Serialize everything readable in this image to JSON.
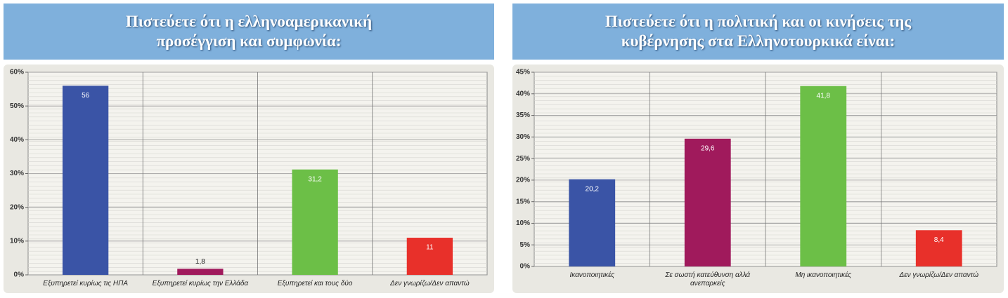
{
  "chart_data": [
    {
      "type": "bar",
      "title": "Πιστεύετε ότι η ελληνοαμερικανική προσέγγιση και συμφωνία:",
      "categories": [
        "Εξυπηρετεί κυρίως τις ΗΠΑ",
        "Εξυπηρετεί κυρίως την Ελλάδα",
        "Εξυπηρετεί και τους δύο",
        "Δεν γνωρίζω/Δεν απαντώ"
      ],
      "values": [
        56,
        1.8,
        31.2,
        11
      ],
      "value_labels": [
        "56",
        "1,8",
        "31,2",
        "11"
      ],
      "colors": [
        "#3a54a6",
        "#a01a5c",
        "#6cbf47",
        "#e8302a"
      ],
      "ylim": [
        0,
        60
      ],
      "yticks": [
        {
          "value": 0,
          "label": "0%"
        },
        {
          "value": 10,
          "label": "10%"
        },
        {
          "value": 20,
          "label": "20%"
        },
        {
          "value": 30,
          "label": "30%"
        },
        {
          "value": 40,
          "label": "40%"
        },
        {
          "value": 50,
          "label": "50%"
        },
        {
          "value": 60,
          "label": "60%"
        }
      ],
      "grid": true
    },
    {
      "type": "bar",
      "title": "Πιστεύετε ότι η πολιτική και οι κινήσεις της κυβέρνησης στα Ελληνοτουρκικά είναι:",
      "categories": [
        "Ικανοποιητικές",
        "Σε σωστή κατεύθυνση αλλά ανεπαρκείς",
        "Μη ικανοποιητικές",
        "Δεν γνωρίζω/Δεν απαντώ"
      ],
      "values": [
        20.2,
        29.6,
        41.8,
        8.4
      ],
      "value_labels": [
        "20,2",
        "29,6",
        "41,8",
        "8,4"
      ],
      "colors": [
        "#3a54a6",
        "#a01a5c",
        "#6cbf47",
        "#e8302a"
      ],
      "ylim": [
        0,
        45
      ],
      "yticks": [
        {
          "value": 0,
          "label": "0%"
        },
        {
          "value": 5,
          "label": "5%"
        },
        {
          "value": 10,
          "label": "10%"
        },
        {
          "value": 15,
          "label": "15%"
        },
        {
          "value": 20,
          "label": "20%"
        },
        {
          "value": 25,
          "label": "25%"
        },
        {
          "value": 30,
          "label": "30%"
        },
        {
          "value": 35,
          "label": "35%"
        },
        {
          "value": 40,
          "label": "40%"
        },
        {
          "value": 45,
          "label": "45%"
        }
      ],
      "grid": true
    }
  ]
}
